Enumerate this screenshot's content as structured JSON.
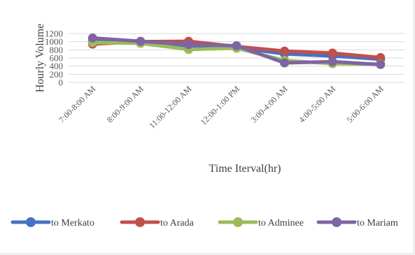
{
  "chart_data": {
    "type": "line",
    "categories": [
      "7:00-8:00 AM",
      "8:00-9:00 AM",
      "11:00-12:00 AM",
      "12:00-1:00 PM",
      "3:00-4:00 AM",
      "4:00-5:00 AM",
      "5:00-6:00 AM"
    ],
    "series": [
      {
        "name": "to Merkato",
        "color": "#4472c4",
        "values": [
          1030,
          1000,
          900,
          860,
          700,
          650,
          570
        ]
      },
      {
        "name": "to Arada",
        "color": "#c0504d",
        "values": [
          940,
          1000,
          1010,
          880,
          770,
          720,
          610
        ]
      },
      {
        "name": "to Adminee",
        "color": "#9bbb59",
        "values": [
          980,
          960,
          810,
          840,
          540,
          460,
          450
        ]
      },
      {
        "name": "to Mariam",
        "color": "#8064a2",
        "values": [
          1090,
          1010,
          930,
          900,
          480,
          510,
          440
        ]
      }
    ],
    "xlabel": "Time Iterval(hr)",
    "ylabel": "Hourly Volume",
    "ylim": [
      0,
      1200
    ],
    "yticks": [
      0,
      200,
      400,
      600,
      800,
      1000,
      1200
    ],
    "grid": true,
    "legend_position": "bottom"
  }
}
